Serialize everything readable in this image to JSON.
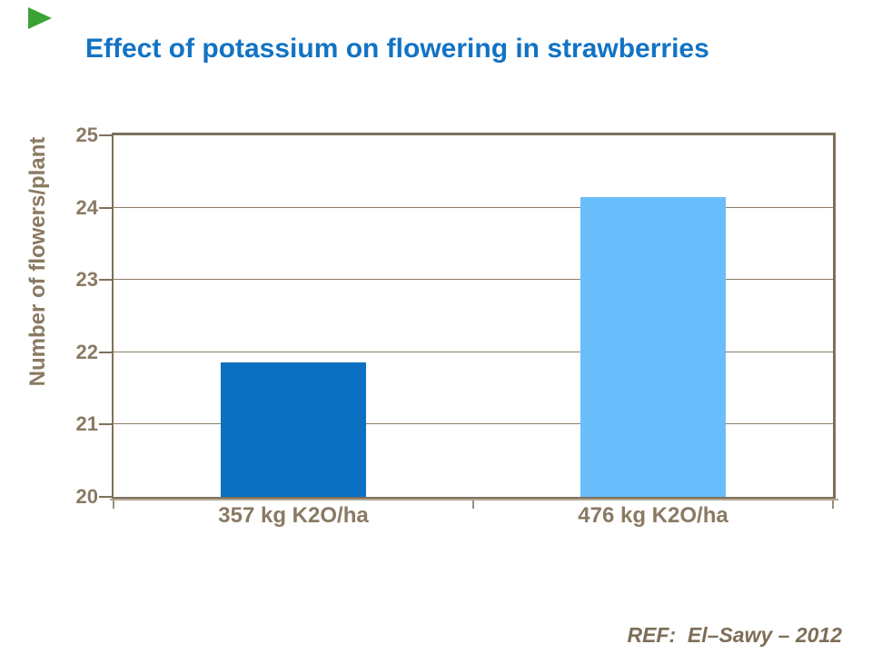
{
  "slide_title": {
    "text": "Effect of potassium on flowering in strawberries"
  },
  "chart_data": {
    "type": "bar",
    "title": "Effect of potassium on flowering in strawberries",
    "categories": [
      "357 kg K2O/ha",
      "476 kg K2O/ha"
    ],
    "values": [
      21.86,
      24.14
    ],
    "bar_colors": [
      "#0b70c2",
      "#69befb"
    ],
    "ylabel": "Number of flowers/plant",
    "xlabel": "",
    "ylim": [
      20,
      25
    ],
    "yticks": [
      20,
      21,
      22,
      23,
      24,
      25
    ],
    "grid": "horizontal",
    "legend": false,
    "frame": true
  },
  "footer": {
    "reference": "REF:  El–Sawy – 2012"
  },
  "logo": {
    "shape": "green-triangle"
  },
  "colors": {
    "background": "#ffffff",
    "title_blue": "#1273c4",
    "axis_dark": "#7e705c",
    "axis_light": "#b3a691",
    "tick_label": "#8a7a63",
    "gridline": "#8b7c65",
    "xtick": "#9c8e79",
    "ref_text": "#7e6e58",
    "logo_green": "#3aa335"
  }
}
